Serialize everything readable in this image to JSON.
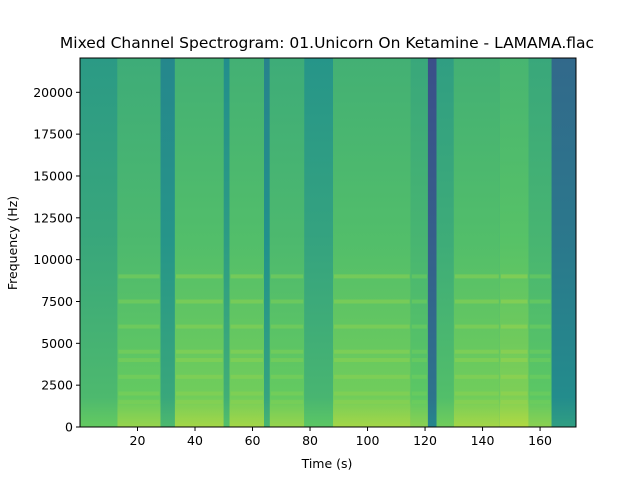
{
  "chart_data": {
    "type": "heatmap",
    "title": "Mixed Channel Spectrogram: 01.Unicorn On Ketamine - LAMAMA.flac",
    "xlabel": "Time (s)",
    "ylabel": "Frequency (Hz)",
    "xlim": [
      0,
      172.5
    ],
    "ylim": [
      0,
      22050
    ],
    "x_ticks": [
      20,
      40,
      60,
      80,
      100,
      120,
      140,
      160
    ],
    "y_ticks": [
      0,
      2500,
      5000,
      7500,
      10000,
      12500,
      15000,
      17500,
      20000
    ],
    "colormap": "viridis",
    "colors": {
      "low": "#3b528b",
      "mid": "#21918c",
      "high": "#5ec962",
      "peak": "#bddf26",
      "max": "#fde725"
    },
    "segments": [
      {
        "start": 0,
        "end": 13,
        "level": 0.6
      },
      {
        "start": 13,
        "end": 28,
        "level": 0.68
      },
      {
        "start": 28,
        "end": 33,
        "level": 0.52
      },
      {
        "start": 33,
        "end": 50,
        "level": 0.7
      },
      {
        "start": 50,
        "end": 52,
        "level": 0.55
      },
      {
        "start": 52,
        "end": 64,
        "level": 0.7
      },
      {
        "start": 64,
        "end": 66,
        "level": 0.5
      },
      {
        "start": 66,
        "end": 78,
        "level": 0.68
      },
      {
        "start": 78,
        "end": 88,
        "level": 0.58
      },
      {
        "start": 88,
        "end": 115,
        "level": 0.7
      },
      {
        "start": 115,
        "end": 121,
        "level": 0.66
      },
      {
        "start": 121,
        "end": 124,
        "level": 0.3
      },
      {
        "start": 124,
        "end": 130,
        "level": 0.62
      },
      {
        "start": 130,
        "end": 146,
        "level": 0.7
      },
      {
        "start": 146,
        "end": 156,
        "level": 0.72
      },
      {
        "start": 156,
        "end": 164,
        "level": 0.66
      },
      {
        "start": 164,
        "end": 172.5,
        "level": 0.4
      }
    ],
    "harmonic_bands_hz": [
      1500,
      2000,
      3000,
      4000,
      4500,
      6000,
      7500,
      9000
    ]
  }
}
